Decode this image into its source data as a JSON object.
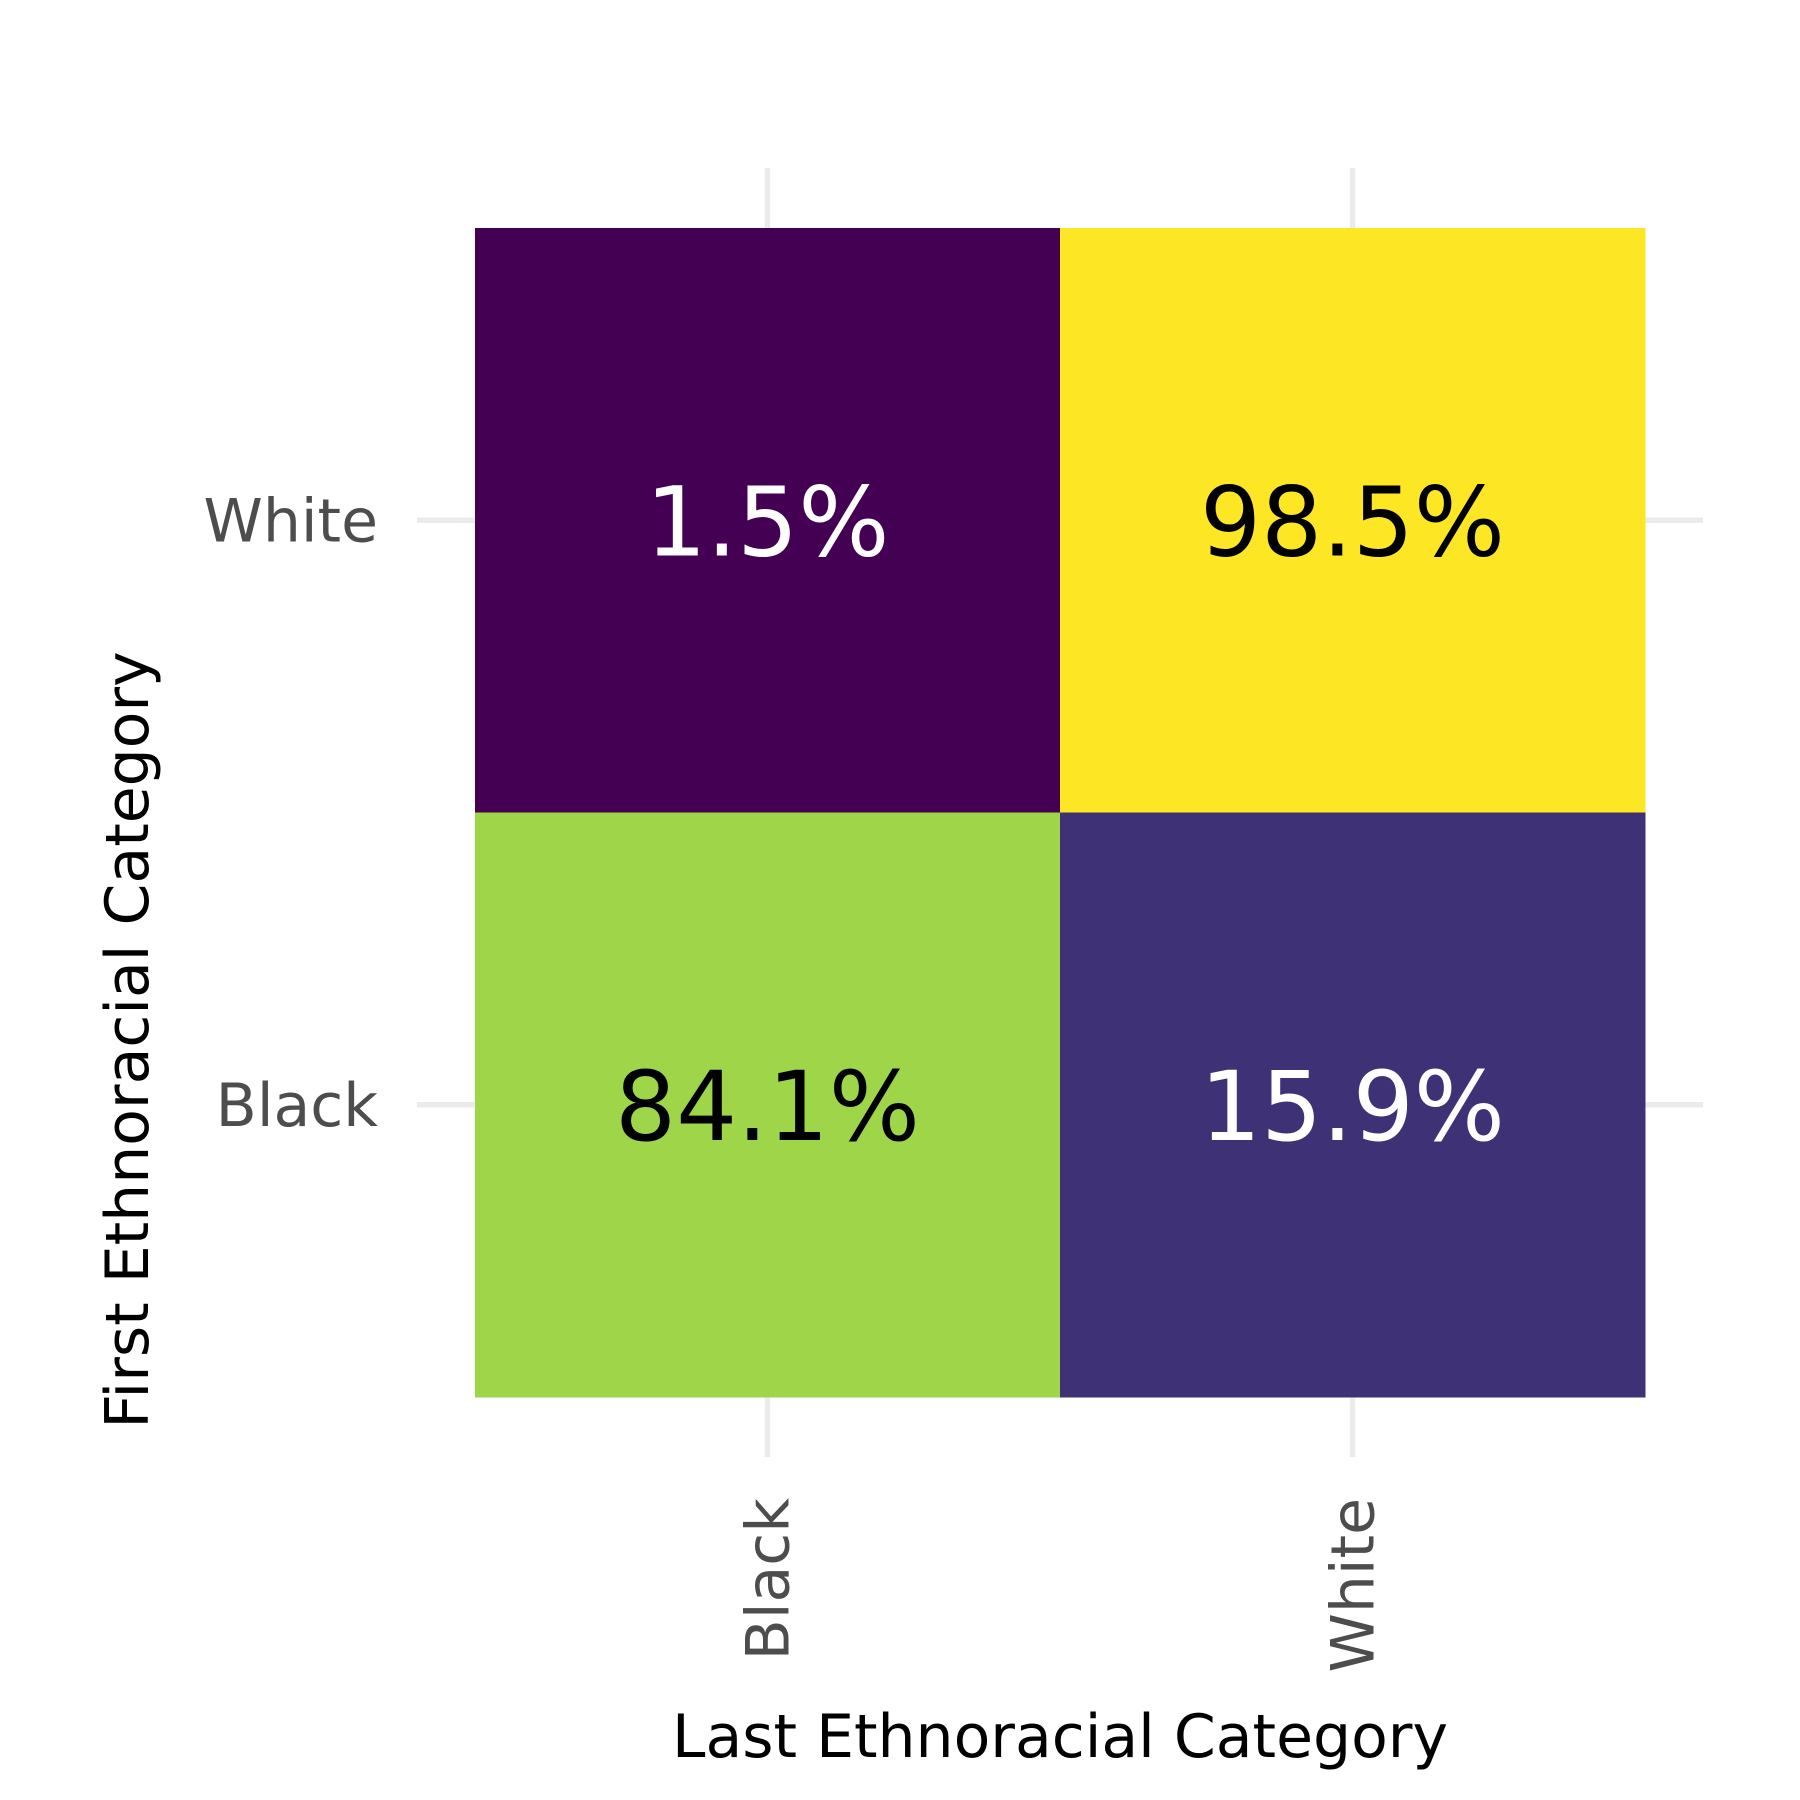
{
  "chart_data": {
    "type": "heatmap",
    "x_categories": [
      "Black",
      "White"
    ],
    "y_categories": [
      "Black",
      "White"
    ],
    "xlabel": "Last Ethnoracial Category",
    "ylabel": "First Ethnoracial Category",
    "cells": [
      {
        "x": "Black",
        "y": "White",
        "value": 1.5,
        "label": "1.5%"
      },
      {
        "x": "White",
        "y": "White",
        "value": 98.5,
        "label": "98.5%"
      },
      {
        "x": "Black",
        "y": "Black",
        "value": 84.1,
        "label": "84.1%"
      },
      {
        "x": "White",
        "y": "Black",
        "value": 15.9,
        "label": "15.9%"
      }
    ],
    "color_scale": "viridis",
    "color_range": [
      1.5,
      98.5
    ],
    "legend": "none",
    "grid": true,
    "x_tick_rotation": -90
  }
}
